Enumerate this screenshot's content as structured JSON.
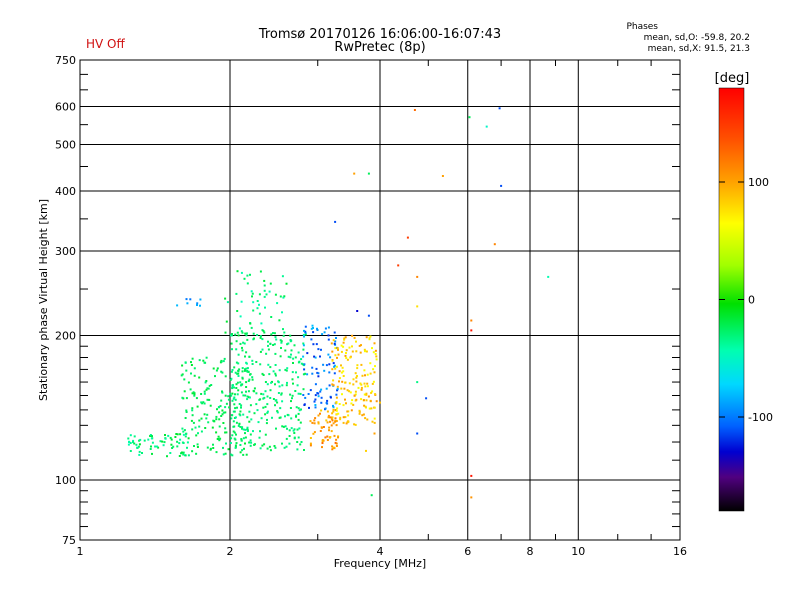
{
  "status_text": "HV Off",
  "title_line1": "Tromsø 20170126 16:06:00-16:07:43",
  "title_line2": "RwPretec (8p)",
  "stats": {
    "title": "Phases",
    "line_o": "mean, sd,O: -59.8, 20.2",
    "line_x": "mean, sd,X:  91.5, 21.3"
  },
  "chart_data": {
    "type": "scatter",
    "xlabel": "Frequency [MHz]",
    "ylabel": "Stationary phase Virtual Height [km]",
    "x_scale": "log",
    "y_scale": "log",
    "xlim": [
      1,
      16
    ],
    "ylim": [
      75,
      750
    ],
    "x_major_ticks": [
      1,
      2,
      4,
      6,
      8,
      10,
      16
    ],
    "x_tick_labels": [
      "1",
      "2",
      "4",
      "6",
      "8",
      "10",
      "16"
    ],
    "x_minor_ticks": [
      3,
      5,
      7,
      9,
      12,
      14
    ],
    "y_major_ticks": [
      75,
      100,
      200,
      300,
      400,
      500,
      600,
      750
    ],
    "y_tick_labels": [
      "75",
      "100",
      "200",
      "300",
      "400",
      "500",
      "600",
      "750"
    ],
    "y_minor_ticks": [
      80,
      85,
      90,
      95,
      110,
      120,
      130,
      140,
      150,
      160,
      170,
      180,
      190,
      250,
      350,
      450,
      550,
      650,
      700
    ],
    "grid": true,
    "colorbar": {
      "label": "[deg]",
      "range": [
        -180,
        180
      ],
      "tick_values": [
        100,
        0,
        -100
      ],
      "tick_labels": [
        "100",
        "0",
        "-100"
      ],
      "position": "right"
    },
    "clusters": [
      {
        "f": [
          1.25,
          1.65
        ],
        "h": [
          112,
          125
        ],
        "phase": [
          -40,
          -10
        ],
        "n": 70
      },
      {
        "f": [
          1.6,
          2.2
        ],
        "h": [
          112,
          180
        ],
        "phase": [
          -30,
          -10
        ],
        "n": 200
      },
      {
        "f": [
          2.0,
          2.85
        ],
        "h": [
          115,
          205
        ],
        "phase": [
          -35,
          -15
        ],
        "n": 300
      },
      {
        "f": [
          1.95,
          2.6
        ],
        "h": [
          200,
          275
        ],
        "phase": [
          -45,
          -10
        ],
        "n": 55
      },
      {
        "f": [
          2.8,
          3.3
        ],
        "h": [
          140,
          210
        ],
        "phase": [
          -120,
          -80
        ],
        "n": 90
      },
      {
        "f": [
          2.9,
          3.3
        ],
        "h": [
          115,
          140
        ],
        "phase": [
          95,
          130
        ],
        "n": 60
      },
      {
        "f": [
          3.2,
          3.95
        ],
        "h": [
          130,
          200
        ],
        "phase": [
          75,
          115
        ],
        "n": 180
      },
      {
        "f": [
          1.55,
          1.75
        ],
        "h": [
          230,
          240
        ],
        "phase": [
          -100,
          -80
        ],
        "n": 8
      }
    ],
    "isolated_points": [
      {
        "f": 4.7,
        "h": 590,
        "phase": 130
      },
      {
        "f": 6.05,
        "h": 570,
        "phase": -20
      },
      {
        "f": 6.55,
        "h": 545,
        "phase": -50
      },
      {
        "f": 6.95,
        "h": 595,
        "phase": -110
      },
      {
        "f": 7.0,
        "h": 410,
        "phase": -110
      },
      {
        "f": 3.55,
        "h": 435,
        "phase": 110
      },
      {
        "f": 3.8,
        "h": 435,
        "phase": -20
      },
      {
        "f": 5.35,
        "h": 430,
        "phase": 110
      },
      {
        "f": 3.25,
        "h": 345,
        "phase": -110
      },
      {
        "f": 4.55,
        "h": 320,
        "phase": 150
      },
      {
        "f": 6.8,
        "h": 310,
        "phase": 120
      },
      {
        "f": 4.35,
        "h": 280,
        "phase": 150
      },
      {
        "f": 4.75,
        "h": 265,
        "phase": 120
      },
      {
        "f": 8.7,
        "h": 265,
        "phase": -40
      },
      {
        "f": 4.75,
        "h": 230,
        "phase": 90
      },
      {
        "f": 6.1,
        "h": 215,
        "phase": 120
      },
      {
        "f": 6.1,
        "h": 205,
        "phase": 170
      },
      {
        "f": 3.8,
        "h": 220,
        "phase": -110
      },
      {
        "f": 3.6,
        "h": 225,
        "phase": -130
      },
      {
        "f": 4.75,
        "h": 160,
        "phase": -30
      },
      {
        "f": 4.95,
        "h": 148,
        "phase": -110
      },
      {
        "f": 4.0,
        "h": 145,
        "phase": 100
      },
      {
        "f": 4.75,
        "h": 125,
        "phase": -110
      },
      {
        "f": 3.9,
        "h": 125,
        "phase": 110
      },
      {
        "f": 3.75,
        "h": 115,
        "phase": 95
      },
      {
        "f": 6.1,
        "h": 102,
        "phase": 170
      },
      {
        "f": 6.1,
        "h": 92,
        "phase": 115
      },
      {
        "f": 3.85,
        "h": 93,
        "phase": -20
      }
    ]
  }
}
